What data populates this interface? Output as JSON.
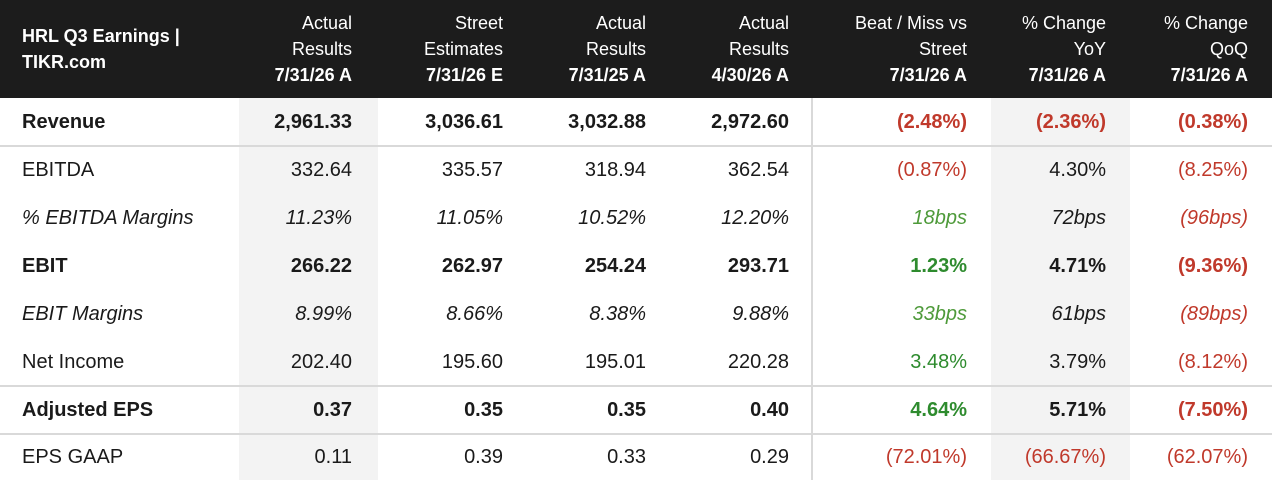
{
  "header": {
    "title_line1": "HRL Q3 Earnings |",
    "title_line2": "TIKR.com",
    "columns": [
      {
        "l1": "Actual",
        "l2": "Results",
        "l3": "7/31/26 A"
      },
      {
        "l1": "Street",
        "l2": "Estimates",
        "l3": "7/31/26 E"
      },
      {
        "l1": "Actual",
        "l2": "Results",
        "l3": "7/31/25 A"
      },
      {
        "l1": "Actual",
        "l2": "Results",
        "l3": "4/30/26 A"
      },
      {
        "l1": "Beat / Miss vs",
        "l2": "Street",
        "l3": "7/31/26 A"
      },
      {
        "l1": "% Change",
        "l2": "YoY",
        "l3": "7/31/26 A"
      },
      {
        "l1": "% Change",
        "l2": "QoQ",
        "l3": "7/31/26 A"
      }
    ]
  },
  "rows": [
    {
      "label": "Revenue",
      "values": [
        "2,961.33",
        "3,036.61",
        "3,032.88",
        "2,972.60",
        "(2.48%)",
        "(2.36%)",
        "(0.38%)"
      ]
    },
    {
      "label": "EBITDA",
      "values": [
        "332.64",
        "335.57",
        "318.94",
        "362.54",
        "(0.87%)",
        "4.30%",
        "(8.25%)"
      ]
    },
    {
      "label": "% EBITDA Margins",
      "values": [
        "11.23%",
        "11.05%",
        "10.52%",
        "12.20%",
        "18bps",
        "72bps",
        "(96bps)"
      ]
    },
    {
      "label": "EBIT",
      "values": [
        "266.22",
        "262.97",
        "254.24",
        "293.71",
        "1.23%",
        "4.71%",
        "(9.36%)"
      ]
    },
    {
      "label": "EBIT Margins",
      "values": [
        "8.99%",
        "8.66%",
        "8.38%",
        "9.88%",
        "33bps",
        "61bps",
        "(89bps)"
      ]
    },
    {
      "label": "Net Income",
      "values": [
        "202.40",
        "195.60",
        "195.01",
        "220.28",
        "3.48%",
        "3.79%",
        "(8.12%)"
      ]
    },
    {
      "label": "Adjusted EPS",
      "values": [
        "0.37",
        "0.35",
        "0.35",
        "0.40",
        "4.64%",
        "5.71%",
        "(7.50%)"
      ]
    },
    {
      "label": "EPS GAAP",
      "values": [
        "0.11",
        "0.39",
        "0.33",
        "0.29",
        "(72.01%)",
        "(66.67%)",
        "(62.07%)"
      ]
    }
  ],
  "colors": {
    "header_bg": "#1c1c1c",
    "negative": "#c0392b",
    "positive": "#2e8b2e",
    "shade": "#f3f3f3"
  }
}
